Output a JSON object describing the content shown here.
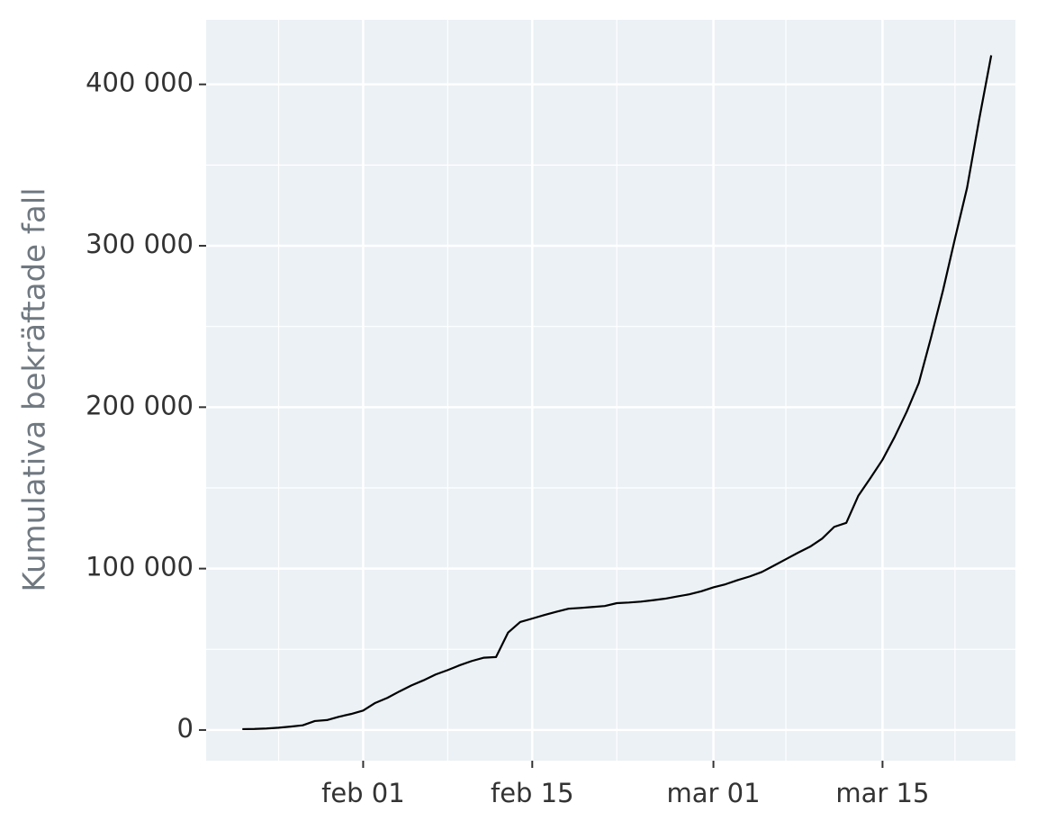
{
  "chart_data": {
    "type": "line",
    "y_label": "Kumulativa bekräftade fall",
    "x": [
      "01-22",
      "01-23",
      "01-24",
      "01-25",
      "01-26",
      "01-27",
      "01-28",
      "01-29",
      "01-30",
      "01-31",
      "02-01",
      "02-02",
      "02-03",
      "02-04",
      "02-05",
      "02-06",
      "02-07",
      "02-08",
      "02-09",
      "02-10",
      "02-11",
      "02-12",
      "02-13",
      "02-14",
      "02-15",
      "02-16",
      "02-17",
      "02-18",
      "02-19",
      "02-20",
      "02-21",
      "02-22",
      "02-23",
      "02-24",
      "02-25",
      "02-26",
      "02-27",
      "02-28",
      "02-29",
      "03-01",
      "03-02",
      "03-03",
      "03-04",
      "03-05",
      "03-06",
      "03-07",
      "03-08",
      "03-09",
      "03-10",
      "03-11",
      "03-12",
      "03-13",
      "03-14",
      "03-15",
      "03-16",
      "03-17",
      "03-18",
      "03-19",
      "03-20",
      "03-21",
      "03-22",
      "03-23",
      "03-24"
    ],
    "values": [
      555,
      654,
      941,
      1434,
      2118,
      2927,
      5578,
      6166,
      8234,
      9927,
      12038,
      16787,
      19887,
      23898,
      27643,
      30802,
      34395,
      37129,
      40159,
      42768,
      44810,
      45228,
      60381,
      66908,
      69050,
      71231,
      73270,
      75152,
      75652,
      76212,
      76840,
      78602,
      78982,
      79546,
      80399,
      81377,
      82729,
      84066,
      85970,
      88371,
      90309,
      92844,
      95124,
      97886,
      101800,
      105836,
      109835,
      113582,
      118582,
      125865,
      128343,
      145193,
      156097,
      167449,
      181531,
      197146,
      214910,
      242708,
      272166,
      304524,
      335955,
      378287,
      417966
    ],
    "color": "#000000",
    "xlim": [
      "01-19",
      "03-26"
    ],
    "xticks": [
      {
        "value": "02-01",
        "label": "feb 01"
      },
      {
        "value": "02-15",
        "label": "feb 15"
      },
      {
        "value": "03-01",
        "label": "mar 01"
      },
      {
        "value": "03-15",
        "label": "mar 15"
      }
    ],
    "ylim": [
      -19000,
      440000
    ],
    "yticks": [
      0,
      {
        "value": 100000,
        "label": "100 000"
      },
      {
        "value": 200000,
        "label": "200 000"
      },
      {
        "value": 300000,
        "label": "300 000"
      },
      {
        "value": 400000,
        "label": "400 000"
      }
    ],
    "grid": true
  }
}
